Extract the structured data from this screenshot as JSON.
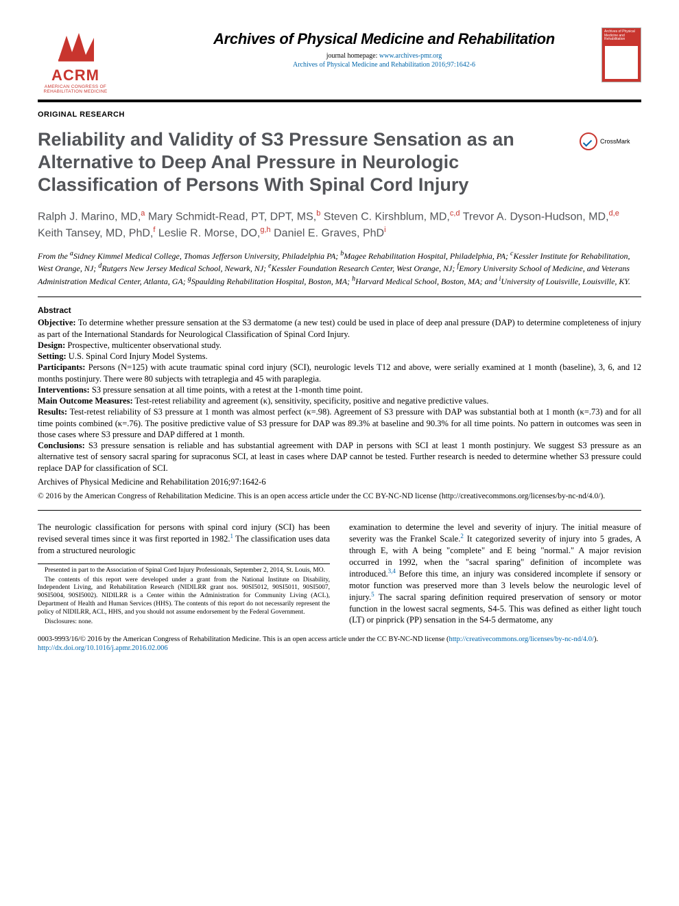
{
  "header": {
    "logo_name": "ACRM",
    "logo_sub": "AMERICAN CONGRESS OF REHABILITATION MEDICINE",
    "journal_title": "Archives of Physical Medicine and Rehabilitation",
    "homepage_label": "journal homepage:",
    "homepage_url": "www.archives-pmr.org",
    "citation": "Archives of Physical Medicine and Rehabilitation 2016;97:1642-6",
    "cover_title": "Archives of Physical Medicine and Rehabilitation",
    "logo_color": "#c8352e"
  },
  "section_type": "ORIGINAL RESEARCH",
  "article_title": "Reliability and Validity of S3 Pressure Sensation as an Alternative to Deep Anal Pressure in Neurologic Classification of Persons With Spinal Cord Injury",
  "crossmark_label": "CrossMark",
  "authors_html": "Ralph J. Marino, MD,<sup>a</sup> Mary Schmidt-Read, PT, DPT, MS,<sup>b</sup> Steven C. Kirshblum, MD,<sup>c,d</sup> Trevor A. Dyson-Hudson, MD,<sup>d,e</sup> Keith Tansey, MD, PhD,<sup>f</sup> Leslie R. Morse, DO,<sup>g,h</sup> Daniel E. Graves, PhD<sup>i</sup>",
  "affiliations": "From the <sup>a</sup>Sidney Kimmel Medical College, Thomas Jefferson University, Philadelphia PA; <sup>b</sup>Magee Rehabilitation Hospital, Philadelphia, PA; <sup>c</sup>Kessler Institute for Rehabilitation, West Orange, NJ; <sup>d</sup>Rutgers New Jersey Medical School, Newark, NJ; <sup>e</sup>Kessler Foundation Research Center, West Orange, NJ; <sup>f</sup>Emory University School of Medicine, and Veterans Administration Medical Center, Atlanta, GA; <sup>g</sup>Spaulding Rehabilitation Hospital, Boston, MA; <sup>h</sup>Harvard Medical School, Boston, MA; and <sup>i</sup>University of Louisville, Louisville, KY.",
  "abstract": {
    "heading": "Abstract",
    "objective_label": "Objective:",
    "objective": "To determine whether pressure sensation at the S3 dermatome (a new test) could be used in place of deep anal pressure (DAP) to determine completeness of injury as part of the International Standards for Neurological Classification of Spinal Cord Injury.",
    "design_label": "Design:",
    "design": "Prospective, multicenter observational study.",
    "setting_label": "Setting:",
    "setting": "U.S. Spinal Cord Injury Model Systems.",
    "participants_label": "Participants:",
    "participants": "Persons (N=125) with acute traumatic spinal cord injury (SCI), neurologic levels T12 and above, were serially examined at 1 month (baseline), 3, 6, and 12 months postinjury. There were 80 subjects with tetraplegia and 45 with paraplegia.",
    "interventions_label": "Interventions:",
    "interventions": "S3 pressure sensation at all time points, with a retest at the 1-month time point.",
    "outcomes_label": "Main Outcome Measures:",
    "outcomes": "Test-retest reliability and agreement (κ), sensitivity, specificity, positive and negative predictive values.",
    "results_label": "Results:",
    "results": "Test-retest reliability of S3 pressure at 1 month was almost perfect (κ=.98). Agreement of S3 pressure with DAP was substantial both at 1 month (κ=.73) and for all time points combined (κ=.76). The positive predictive value of S3 pressure for DAP was 89.3% at baseline and 90.3% for all time points. No pattern in outcomes was seen in those cases where S3 pressure and DAP differed at 1 month.",
    "conclusions_label": "Conclusions:",
    "conclusions": "S3 pressure sensation is reliable and has substantial agreement with DAP in persons with SCI at least 1 month postinjury. We suggest S3 pressure as an alternative test of sensory sacral sparing for supraconus SCI, at least in cases where DAP cannot be tested. Further research is needed to determine whether S3 pressure could replace DAP for classification of SCI.",
    "citation": "Archives of Physical Medicine and Rehabilitation 2016;97:1642-6",
    "license": "© 2016 by the American Congress of Rehabilitation Medicine. This is an open access article under the CC BY-NC-ND license (http://creativecommons.org/licenses/by-nc-nd/4.0/)."
  },
  "body": {
    "col1": "The neurologic classification for persons with spinal cord injury (SCI) has been revised several times since it was first reported in 1982.<sup>1</sup> The classification uses data from a structured neurologic",
    "col2": "examination to determine the level and severity of injury. The initial measure of severity was the Frankel Scale.<sup>2</sup> It categorized severity of injury into 5 grades, A through E, with A being \"complete\" and E being \"normal.\" A major revision occurred in 1992, when the \"sacral sparing\" definition of incomplete was introduced.<sup>3,4</sup> Before this time, an injury was considered incomplete if sensory or motor function was preserved more than 3 levels below the neurologic level of injury.<sup>5</sup> The sacral sparing definition required preservation of sensory or motor function in the lowest sacral segments, S4-5. This was defined as either light touch (LT) or pinprick (PP) sensation in the S4-5 dermatome, any"
  },
  "footnotes": {
    "presented": "Presented in part to the Association of Spinal Cord Injury Professionals, September 2, 2014, St. Louis, MO.",
    "grant": "The contents of this report were developed under a grant from the National Institute on Disability, Independent Living, and Rehabilitation Research (NIDILRR grant nos. 90SI5012, 90SI5011, 90SI5007, 90SI5004, 90SI5002). NIDILRR is a Center within the Administration for Community Living (ACL), Department of Health and Human Services (HHS). The contents of this report do not necessarily represent the policy of NIDILRR, ACL, HHS, and you should not assume endorsement by the Federal Government.",
    "disclosures": "Disclosures: none."
  },
  "footer": {
    "license_line": "0003-9993/16/© 2016 by the American Congress of Rehabilitation Medicine. This is an open access article under the CC BY-NC-ND license (",
    "license_url": "http://creativecommons.org/licenses/by-nc-nd/4.0/",
    "license_close": ").",
    "doi": "http://dx.doi.org/10.1016/j.apmr.2016.02.006"
  },
  "colors": {
    "accent": "#c8352e",
    "heading_gray": "#525458",
    "link": "#0066aa",
    "text": "#000000",
    "bg": "#ffffff"
  },
  "typography": {
    "body_font": "Times New Roman",
    "heading_font": "Arial",
    "article_title_size": 27,
    "author_size": 16,
    "abstract_size": 12.5,
    "body_size": 12.5,
    "footnote_size": 9.5
  }
}
